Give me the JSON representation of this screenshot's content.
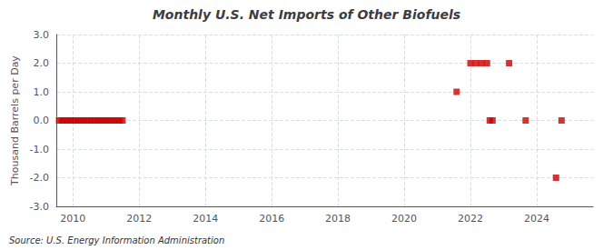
{
  "chart_data": {
    "type": "scatter",
    "title": "Monthly U.S. Net Imports of Other Biofuels",
    "ylabel": "Thousand Barrels per Day",
    "annotation": "Source: U.S. Energy Information Administration",
    "x": [
      2009.583,
      2009.667,
      2009.75,
      2009.833,
      2009.917,
      2010.0,
      2010.083,
      2010.167,
      2010.25,
      2010.333,
      2010.417,
      2010.5,
      2010.583,
      2010.667,
      2010.75,
      2010.833,
      2010.917,
      2011.0,
      2011.083,
      2011.167,
      2011.25,
      2011.333,
      2011.417,
      2011.5,
      2021.583,
      2022.0,
      2022.167,
      2022.333,
      2022.5,
      2022.583,
      2022.667,
      2023.167,
      2023.667,
      2024.583,
      2024.75
    ],
    "values": [
      0.0,
      0.0,
      0.0,
      0.0,
      0.0,
      0.0,
      0.0,
      0.0,
      0.0,
      0.0,
      0.0,
      0.0,
      0.0,
      0.0,
      0.0,
      0.0,
      0.0,
      0.0,
      0.0,
      0.0,
      0.0,
      0.0,
      0.0,
      0.0,
      1.0,
      2.0,
      2.0,
      2.0,
      2.0,
      0.0,
      0.0,
      2.0,
      0.0,
      -2.0,
      0.0
    ],
    "color": "#cc0000",
    "marker": "square",
    "xlim": [
      2009.5,
      2025.7
    ],
    "xticks": [
      2010,
      2012,
      2014,
      2016,
      2018,
      2020,
      2022,
      2024
    ],
    "ylim": [
      -3.0,
      3.0
    ],
    "yticks": [
      {
        "value": -3.0,
        "label": "-3.0"
      },
      {
        "value": -2.0,
        "label": "-2.0"
      },
      {
        "value": -1.0,
        "label": "-1.0"
      },
      {
        "value": 0.0,
        "label": "0.0"
      },
      {
        "value": 1.0,
        "label": "1.0"
      },
      {
        "value": 2.0,
        "label": "2.0"
      },
      {
        "value": 3.0,
        "label": "3.0"
      }
    ],
    "grid": true
  }
}
